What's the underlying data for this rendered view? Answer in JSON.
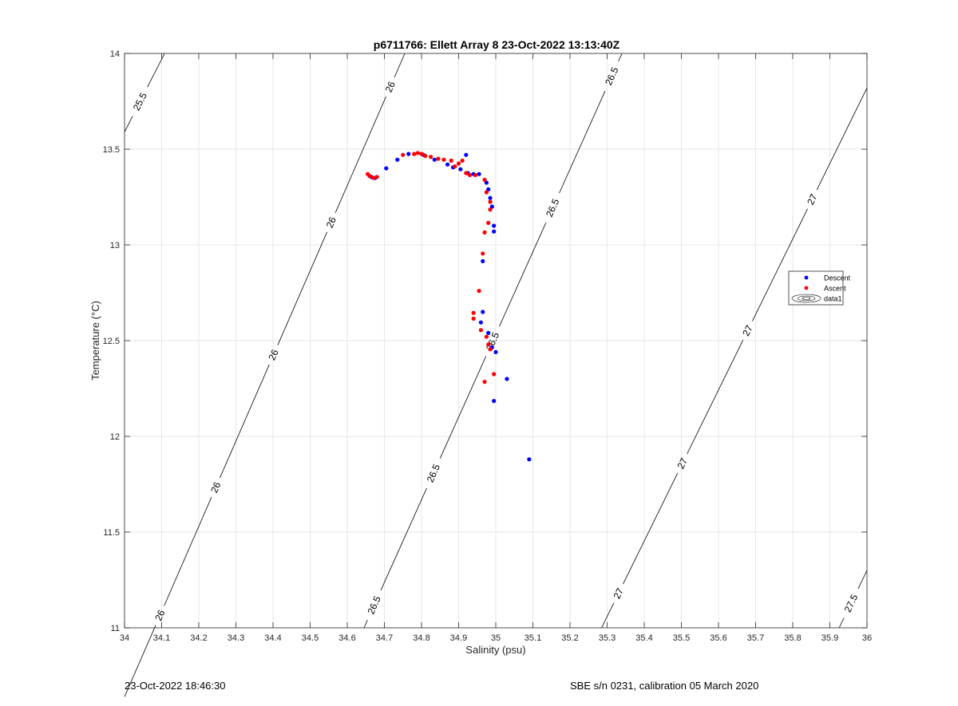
{
  "chart_data": {
    "type": "scatter",
    "title": "p6711766: Ellett Array 8 23-Oct-2022 13:13:40Z",
    "xlabel": "Salinity (psu)",
    "ylabel": "Temperature (°C)",
    "xlim": [
      34,
      36
    ],
    "ylim": [
      11,
      14
    ],
    "xticks": [
      34,
      34.1,
      34.2,
      34.3,
      34.4,
      34.5,
      34.6,
      34.7,
      34.8,
      34.9,
      35,
      35.1,
      35.2,
      35.3,
      35.4,
      35.5,
      35.6,
      35.7,
      35.8,
      35.9,
      36
    ],
    "xtick_labels": [
      "34",
      "34.1",
      "34.2",
      "34.3",
      "34.4",
      "34.5",
      "34.6",
      "34.7",
      "34.8",
      "34.9",
      "35",
      "35.1",
      "35.2",
      "35.3",
      "35.4",
      "35.5",
      "35.6",
      "35.7",
      "35.8",
      "35.9",
      "36"
    ],
    "yticks": [
      11,
      11.5,
      12,
      12.5,
      13,
      13.5,
      14
    ],
    "ytick_labels": [
      "11",
      "11.5",
      "12",
      "12.5",
      "13",
      "13.5",
      "14"
    ],
    "grid": true,
    "legend_position": "right",
    "legend": [
      {
        "label": "Descent",
        "marker": "dot",
        "color": "#0000ff"
      },
      {
        "label": "Ascent",
        "marker": "dot",
        "color": "#ff0000"
      },
      {
        "label": "data1",
        "marker": "contour",
        "color": "#000000"
      }
    ],
    "series": [
      {
        "name": "Descent",
        "color": "#0000ff",
        "points": [
          [
            34.665,
            13.355
          ],
          [
            34.675,
            13.35
          ],
          [
            34.705,
            13.4
          ],
          [
            34.735,
            13.445
          ],
          [
            34.765,
            13.475
          ],
          [
            34.805,
            13.47
          ],
          [
            34.835,
            13.445
          ],
          [
            34.87,
            13.42
          ],
          [
            34.885,
            13.405
          ],
          [
            34.905,
            13.395
          ],
          [
            34.92,
            13.47
          ],
          [
            34.925,
            13.375
          ],
          [
            34.94,
            13.37
          ],
          [
            34.955,
            13.37
          ],
          [
            34.975,
            13.325
          ],
          [
            34.98,
            13.29
          ],
          [
            34.985,
            13.245
          ],
          [
            34.99,
            13.2
          ],
          [
            34.995,
            13.1
          ],
          [
            34.995,
            13.07
          ],
          [
            34.965,
            12.915
          ],
          [
            34.965,
            12.65
          ],
          [
            34.96,
            12.595
          ],
          [
            34.98,
            12.54
          ],
          [
            34.99,
            12.465
          ],
          [
            35.0,
            12.44
          ],
          [
            35.03,
            12.3
          ],
          [
            34.995,
            12.185
          ],
          [
            35.09,
            11.88
          ]
        ]
      },
      {
        "name": "Ascent",
        "color": "#ff0000",
        "points": [
          [
            34.655,
            13.37
          ],
          [
            34.66,
            13.36
          ],
          [
            34.67,
            13.35
          ],
          [
            34.68,
            13.355
          ],
          [
            34.75,
            13.47
          ],
          [
            34.78,
            13.475
          ],
          [
            34.79,
            13.48
          ],
          [
            34.8,
            13.475
          ],
          [
            34.81,
            13.465
          ],
          [
            34.825,
            13.46
          ],
          [
            34.845,
            13.45
          ],
          [
            34.86,
            13.445
          ],
          [
            34.88,
            13.44
          ],
          [
            34.89,
            13.41
          ],
          [
            34.9,
            13.425
          ],
          [
            34.91,
            13.44
          ],
          [
            34.92,
            13.375
          ],
          [
            34.93,
            13.365
          ],
          [
            34.945,
            13.365
          ],
          [
            34.97,
            13.34
          ],
          [
            34.975,
            13.275
          ],
          [
            34.985,
            13.225
          ],
          [
            34.985,
            13.185
          ],
          [
            34.98,
            13.115
          ],
          [
            34.97,
            13.065
          ],
          [
            34.965,
            12.955
          ],
          [
            34.955,
            12.76
          ],
          [
            34.94,
            12.645
          ],
          [
            34.94,
            12.615
          ],
          [
            34.96,
            12.555
          ],
          [
            34.975,
            12.52
          ],
          [
            34.98,
            12.48
          ],
          [
            34.985,
            12.455
          ],
          [
            34.995,
            12.325
          ],
          [
            34.97,
            12.285
          ]
        ]
      }
    ],
    "contours": [
      {
        "level": 25.5,
        "label": "25.5",
        "points": [
          [
            34.0,
            13.59
          ],
          [
            34.108,
            14.0
          ]
        ],
        "label_positions": [
          [
            34.04,
            13.75
          ]
        ]
      },
      {
        "level": 26,
        "label": "26",
        "points": [
          [
            34.0,
            10.64
          ],
          [
            34.755,
            14.0
          ]
        ],
        "label_positions": [
          [
            34.03,
            11.12
          ],
          [
            34.19,
            11.78
          ],
          [
            34.36,
            12.46
          ],
          [
            34.53,
            13.14
          ],
          [
            34.71,
            13.83
          ]
        ]
      },
      {
        "level": 26.5,
        "label": "26.5",
        "points": [
          [
            34.645,
            11.0
          ],
          [
            35.34,
            14.0
          ]
        ],
        "label_positions": [
          [
            34.67,
            11.12
          ],
          [
            34.84,
            11.8
          ],
          [
            35.01,
            12.48
          ],
          [
            35.18,
            13.17
          ],
          [
            35.36,
            13.84
          ]
        ]
      },
      {
        "level": 27,
        "label": "27",
        "points": [
          [
            35.285,
            11.0
          ],
          [
            36.0,
            13.82
          ]
        ],
        "label_positions": [
          [
            35.33,
            11.18
          ],
          [
            35.48,
            11.88
          ],
          [
            35.66,
            12.57
          ],
          [
            35.85,
            13.24
          ]
        ]
      },
      {
        "level": 27.5,
        "label": "27.5",
        "points": [
          [
            35.925,
            11.0
          ],
          [
            36.0,
            11.3
          ]
        ],
        "label_positions": [
          [
            35.955,
            11.13
          ]
        ]
      }
    ]
  },
  "footer": {
    "left": "23-Oct-2022 18:46:30",
    "right": "SBE s/n 0231, calibration 05 March 2020"
  }
}
